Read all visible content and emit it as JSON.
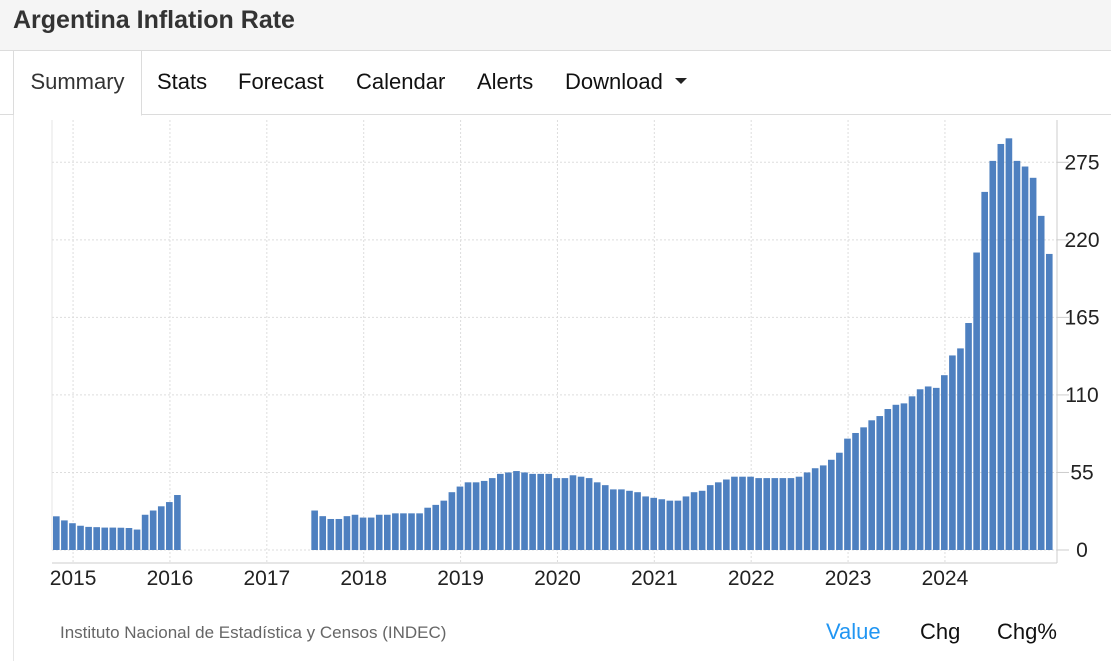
{
  "header": {
    "title": "Argentina Inflation Rate"
  },
  "tabs": [
    {
      "label": "Summary",
      "active": true
    },
    {
      "label": "Stats"
    },
    {
      "label": "Forecast"
    },
    {
      "label": "Calendar"
    },
    {
      "label": "Alerts"
    },
    {
      "label": "Download",
      "dropdown": true
    }
  ],
  "footer": {
    "source": "Instituto Nacional de Estadística y Censos (INDEC)",
    "views": [
      {
        "label": "Value",
        "active": true
      },
      {
        "label": "Chg"
      },
      {
        "label": "Chg%"
      }
    ],
    "active_color": "#2196f3"
  },
  "chart_data": {
    "type": "bar",
    "bar_color": "#4e80c0",
    "x_start": "2014-12",
    "x_ticks": [
      "2015",
      "2016",
      "2017",
      "2018",
      "2019",
      "2020",
      "2021",
      "2022",
      "2023",
      "2024"
    ],
    "y_ticks": [
      "0",
      "55",
      "110",
      "165",
      "220",
      "275"
    ],
    "ylim": [
      0,
      305
    ],
    "grid": true,
    "values": [
      23.9,
      21.0,
      19.0,
      17.2,
      16.4,
      16.2,
      15.9,
      15.9,
      15.8,
      15.6,
      14.5,
      25.0,
      28.0,
      31.0,
      34.0,
      39.0,
      null,
      null,
      null,
      null,
      null,
      null,
      null,
      null,
      null,
      null,
      null,
      null,
      null,
      null,
      null,
      null,
      28.0,
      24.0,
      22.0,
      22.0,
      24.0,
      25.0,
      23.0,
      23.0,
      25.0,
      25.0,
      26.0,
      26.0,
      26.0,
      26.0,
      30.0,
      32.0,
      35.0,
      41.0,
      45.0,
      48.0,
      48.0,
      49.0,
      51.0,
      54.0,
      55.0,
      56.0,
      55.0,
      54.0,
      54.0,
      54.0,
      51.0,
      51.0,
      53.0,
      52.0,
      51.0,
      48.0,
      46.0,
      43.0,
      43.0,
      42.0,
      41.0,
      38.0,
      37.0,
      36.0,
      35.0,
      35.0,
      38.0,
      41.0,
      42.0,
      46.0,
      48.0,
      50.0,
      52.0,
      52.0,
      52.0,
      51.0,
      51.0,
      51.0,
      51.0,
      51.0,
      52.0,
      55.0,
      58.0,
      60.0,
      64.0,
      69.0,
      79.0,
      83.0,
      87.0,
      92.0,
      95.0,
      100.0,
      103.0,
      104.0,
      109.0,
      114.0,
      116.0,
      115.0,
      124.0,
      138.0,
      143.0,
      161.0,
      211.0,
      254.0,
      276.0,
      288.0,
      292.0,
      276.0,
      272.0,
      264.0,
      237.0,
      210.0
    ]
  }
}
